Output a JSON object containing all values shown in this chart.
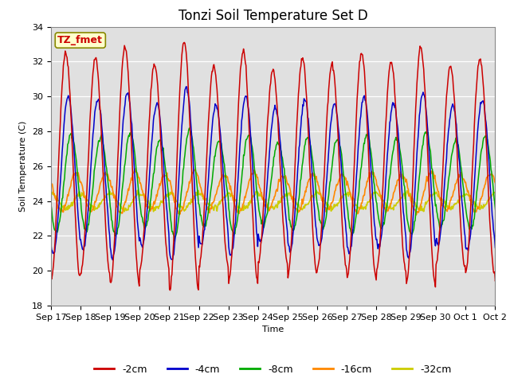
{
  "title": "Tonzi Soil Temperature Set D",
  "xlabel": "Time",
  "ylabel": "Soil Temperature (C)",
  "ylim": [
    18,
    34
  ],
  "yticks": [
    18,
    20,
    22,
    24,
    26,
    28,
    30,
    32,
    34
  ],
  "xtick_labels": [
    "Sep 17",
    "Sep 18",
    "Sep 19",
    "Sep 20",
    "Sep 21",
    "Sep 22",
    "Sep 23",
    "Sep 24",
    "Sep 25",
    "Sep 26",
    "Sep 27",
    "Sep 28",
    "Sep 29",
    "Sep 30",
    "Oct 1",
    "Oct 2"
  ],
  "series_colors": [
    "#cc0000",
    "#0000cc",
    "#00aa00",
    "#ff8800",
    "#cccc00"
  ],
  "series_labels": [
    "-2cm",
    "-4cm",
    "-8cm",
    "-16cm",
    "-32cm"
  ],
  "annotation_text": "TZ_fmet",
  "annotation_color": "#cc0000",
  "annotation_bg": "#ffffcc",
  "annotation_border": "#888800",
  "background_color": "#e0e0e0",
  "title_fontsize": 12,
  "axis_fontsize": 8,
  "legend_fontsize": 9,
  "n_days": 16,
  "pday": 48,
  "base_mean": [
    26.0,
    25.5,
    25.0,
    24.5,
    24.0
  ],
  "amplitudes": [
    6.5,
    4.5,
    2.8,
    1.1,
    0.45
  ],
  "phase_lags": [
    0.0,
    0.08,
    0.18,
    0.35,
    0.5
  ],
  "daily_amp_pattern": [
    1.0,
    0.95,
    1.05,
    0.9,
    1.1,
    0.88,
    1.02,
    0.85,
    0.95,
    0.9,
    1.0,
    0.92,
    1.05,
    0.88,
    0.95,
    1.0
  ]
}
